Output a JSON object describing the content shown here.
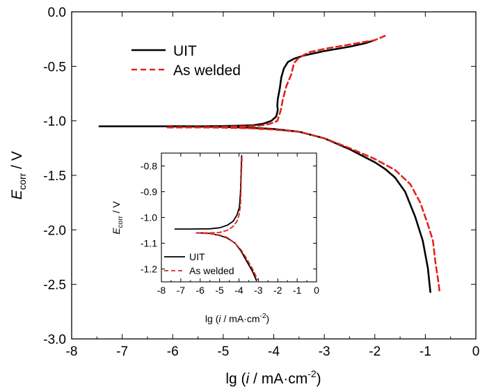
{
  "colors": {
    "uit": "#000000",
    "as_welded": "#e0241b",
    "axis": "#000000",
    "background": "#ffffff"
  },
  "chart_data": [
    {
      "type": "line",
      "role": "main",
      "xlabel": {
        "main": "lg (",
        "italic": "i",
        "rest": " / mA·cm",
        "sup": "-2",
        "close": ")"
      },
      "ylabel": {
        "main": "E",
        "sub": "corr",
        "rest": " / V"
      },
      "xlim": [
        -8,
        0
      ],
      "ylim": [
        -3.0,
        0.0
      ],
      "xticks": [
        -8,
        -7,
        -6,
        -5,
        -4,
        -3,
        -2,
        -1,
        0
      ],
      "xtick_labels": [
        "-8",
        "-7",
        "-6",
        "-5",
        "-4",
        "-3",
        "-2",
        "-1",
        "0"
      ],
      "yticks": [
        0.0,
        -0.5,
        -1.0,
        -1.5,
        -2.0,
        -2.5,
        -3.0
      ],
      "ytick_labels": [
        "0.0",
        "-0.5",
        "-1.0",
        "-1.5",
        "-2.0",
        "-2.5",
        "-3.0"
      ],
      "grid": false,
      "legend_position": "top-left",
      "series": [
        {
          "name": "UIT",
          "style": "solid",
          "anodic": [
            [
              -7.45,
              -1.05
            ],
            [
              -6.5,
              -1.05
            ],
            [
              -5.5,
              -1.05
            ],
            [
              -5.0,
              -1.048
            ],
            [
              -4.7,
              -1.045
            ],
            [
              -4.4,
              -1.04
            ],
            [
              -4.2,
              -1.025
            ],
            [
              -4.05,
              -1.0
            ],
            [
              -3.95,
              -0.96
            ],
            [
              -3.92,
              -0.9
            ],
            [
              -3.93,
              -0.86
            ],
            [
              -3.92,
              -0.8
            ],
            [
              -3.88,
              -0.7
            ],
            [
              -3.85,
              -0.6
            ],
            [
              -3.8,
              -0.52
            ],
            [
              -3.72,
              -0.46
            ],
            [
              -3.6,
              -0.43
            ],
            [
              -3.4,
              -0.4
            ],
            [
              -3.0,
              -0.36
            ],
            [
              -2.5,
              -0.32
            ],
            [
              -2.2,
              -0.29
            ],
            [
              -2.0,
              -0.26
            ]
          ],
          "cathodic": [
            [
              -6.0,
              -1.05
            ],
            [
              -5.5,
              -1.052
            ],
            [
              -5.0,
              -1.055
            ],
            [
              -4.5,
              -1.062
            ],
            [
              -4.0,
              -1.075
            ],
            [
              -3.5,
              -1.1
            ],
            [
              -3.0,
              -1.16
            ],
            [
              -2.5,
              -1.26
            ],
            [
              -2.0,
              -1.38
            ],
            [
              -1.8,
              -1.44
            ],
            [
              -1.6,
              -1.52
            ],
            [
              -1.4,
              -1.65
            ],
            [
              -1.2,
              -1.88
            ],
            [
              -1.05,
              -2.1
            ],
            [
              -0.95,
              -2.35
            ],
            [
              -0.9,
              -2.57
            ]
          ]
        },
        {
          "name": "As welded",
          "style": "dashed",
          "anodic": [
            [
              -6.1,
              -1.06
            ],
            [
              -5.5,
              -1.058
            ],
            [
              -5.0,
              -1.055
            ],
            [
              -4.6,
              -1.05
            ],
            [
              -4.3,
              -1.045
            ],
            [
              -4.1,
              -1.03
            ],
            [
              -4.0,
              -1.015
            ],
            [
              -3.93,
              -1.0
            ],
            [
              -3.9,
              -0.96
            ],
            [
              -3.86,
              -0.9
            ],
            [
              -3.82,
              -0.8
            ],
            [
              -3.75,
              -0.68
            ],
            [
              -3.65,
              -0.57
            ],
            [
              -3.6,
              -0.47
            ],
            [
              -3.5,
              -0.42
            ],
            [
              -3.3,
              -0.37
            ],
            [
              -3.0,
              -0.34
            ],
            [
              -2.5,
              -0.3
            ],
            [
              -2.0,
              -0.26
            ],
            [
              -1.8,
              -0.22
            ]
          ],
          "cathodic": [
            [
              -6.1,
              -1.06
            ],
            [
              -5.5,
              -1.06
            ],
            [
              -5.0,
              -1.062
            ],
            [
              -4.5,
              -1.068
            ],
            [
              -4.0,
              -1.08
            ],
            [
              -3.5,
              -1.1
            ],
            [
              -3.0,
              -1.16
            ],
            [
              -2.5,
              -1.25
            ],
            [
              -2.0,
              -1.35
            ],
            [
              -1.6,
              -1.45
            ],
            [
              -1.3,
              -1.58
            ],
            [
              -1.1,
              -1.75
            ],
            [
              -0.95,
              -1.95
            ],
            [
              -0.85,
              -2.1
            ],
            [
              -0.8,
              -2.3
            ],
            [
              -0.75,
              -2.45
            ],
            [
              -0.72,
              -2.56
            ]
          ]
        }
      ]
    },
    {
      "type": "line",
      "role": "inset",
      "xlabel": {
        "main": "lg (",
        "italic": "i",
        "rest": " / mA·cm",
        "sup": "-2",
        "close": ")"
      },
      "ylabel": {
        "main": "E",
        "sub": "corr",
        "rest": " / V"
      },
      "xlim": [
        -8,
        0
      ],
      "ylim": [
        -1.25,
        -0.75
      ],
      "xticks": [
        -8,
        -7,
        -6,
        -5,
        -4,
        -3,
        -2,
        -1,
        0
      ],
      "xtick_labels": [
        "-8",
        "-7",
        "-6",
        "-5",
        "-4",
        "-3",
        "-2",
        "-1",
        "0"
      ],
      "yticks": [
        -0.8,
        -0.9,
        -1.0,
        -1.1,
        -1.2
      ],
      "ytick_labels": [
        "-0.8",
        "-0.9",
        "-1.0",
        "-1.1",
        "-1.2"
      ],
      "grid": false,
      "legend_position": "bottom-left",
      "series": [
        {
          "name": "UIT",
          "style": "solid",
          "anodic": [
            [
              -7.3,
              -1.045
            ],
            [
              -6.5,
              -1.045
            ],
            [
              -5.5,
              -1.044
            ],
            [
              -5.0,
              -1.04
            ],
            [
              -4.6,
              -1.03
            ],
            [
              -4.3,
              -1.015
            ],
            [
              -4.1,
              -0.99
            ],
            [
              -3.98,
              -0.96
            ],
            [
              -3.92,
              -0.9
            ],
            [
              -3.9,
              -0.85
            ],
            [
              -3.88,
              -0.8
            ],
            [
              -3.86,
              -0.76
            ]
          ],
          "cathodic": [
            [
              -6.0,
              -1.06
            ],
            [
              -5.5,
              -1.062
            ],
            [
              -5.0,
              -1.07
            ],
            [
              -4.6,
              -1.08
            ],
            [
              -4.2,
              -1.1
            ],
            [
              -3.9,
              -1.13
            ],
            [
              -3.6,
              -1.17
            ],
            [
              -3.3,
              -1.21
            ],
            [
              -3.1,
              -1.245
            ]
          ]
        },
        {
          "name": "As welded",
          "style": "dashed",
          "anodic": [
            [
              -6.2,
              -1.06
            ],
            [
              -5.5,
              -1.06
            ],
            [
              -5.0,
              -1.058
            ],
            [
              -4.6,
              -1.05
            ],
            [
              -4.3,
              -1.035
            ],
            [
              -4.1,
              -1.015
            ],
            [
              -3.98,
              -0.985
            ],
            [
              -3.92,
              -0.95
            ],
            [
              -3.9,
              -0.9
            ],
            [
              -3.88,
              -0.84
            ],
            [
              -3.86,
              -0.8
            ],
            [
              -3.84,
              -0.76
            ]
          ],
          "cathodic": [
            [
              -6.2,
              -1.06
            ],
            [
              -5.5,
              -1.063
            ],
            [
              -5.0,
              -1.068
            ],
            [
              -4.6,
              -1.078
            ],
            [
              -4.2,
              -1.1
            ],
            [
              -3.9,
              -1.125
            ],
            [
              -3.6,
              -1.16
            ],
            [
              -3.3,
              -1.2
            ],
            [
              -3.05,
              -1.24
            ]
          ]
        }
      ]
    }
  ]
}
